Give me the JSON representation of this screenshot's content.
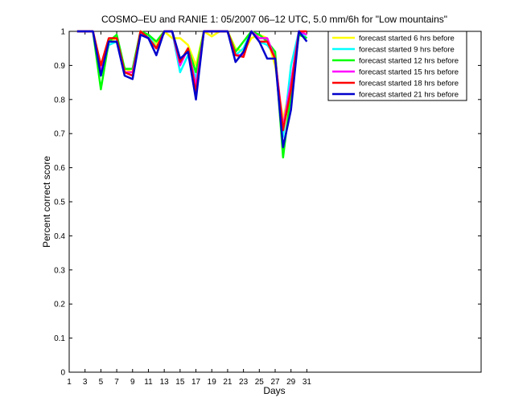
{
  "chart_data": {
    "type": "line",
    "title": "COSMO–EU and RANIE 1: 05/2007 06–12 UTC, 5.0 mm/6h for \"Low mountains\"",
    "xlabel": "Days",
    "ylabel": "Percent correct score",
    "xlim": [
      1,
      53
    ],
    "ylim": [
      0,
      1
    ],
    "x_ticks": [
      "1",
      "3",
      "5",
      "7",
      "9",
      "11",
      "13",
      "15",
      "17",
      "19",
      "21",
      "23",
      "25",
      "27",
      "29",
      "31"
    ],
    "y_ticks": [
      "0",
      "0.1",
      "0.2",
      "0.3",
      "0.4",
      "0.5",
      "0.6",
      "0.7",
      "0.8",
      "0.9",
      "1"
    ],
    "grid": false,
    "legend_position": "top-right",
    "x": [
      1,
      2,
      3,
      4,
      5,
      6,
      7,
      8,
      9,
      10,
      11,
      12,
      13,
      14,
      15,
      16,
      17,
      18,
      19,
      20,
      21,
      22,
      23,
      24,
      25,
      26,
      27,
      28,
      29,
      30,
      31
    ],
    "series": [
      {
        "name": "forecast started 6 hrs before",
        "color": "#ffff00",
        "values": [
          null,
          1,
          1,
          1,
          0.9,
          0.97,
          0.98,
          0.89,
          0.88,
          1,
          0.99,
          0.96,
          1,
          0.98,
          0.98,
          0.96,
          0.9,
          1,
          0.985,
          1,
          1,
          0.95,
          0.94,
          0.98,
          0.99,
          0.98,
          0.9,
          0.74,
          0.85,
          1,
          0.99
        ]
      },
      {
        "name": "forecast started 9 hrs before",
        "color": "#00ffff",
        "values": [
          null,
          1,
          1,
          1,
          0.87,
          0.96,
          0.97,
          0.88,
          0.87,
          0.99,
          0.99,
          0.95,
          1,
          1,
          0.88,
          0.93,
          0.86,
          1,
          1,
          1,
          1,
          0.93,
          0.95,
          1,
          0.97,
          0.96,
          0.93,
          0.69,
          0.9,
          1,
          0.98
        ]
      },
      {
        "name": "forecast started 12 hrs before",
        "color": "#00ff00",
        "values": [
          null,
          1,
          1,
          1,
          0.83,
          0.97,
          0.99,
          0.89,
          0.89,
          1,
          0.99,
          0.97,
          1,
          1,
          0.91,
          0.95,
          0.88,
          1,
          1,
          1,
          1,
          0.94,
          0.97,
          1,
          0.99,
          0.97,
          0.94,
          0.63,
          0.82,
          0.99,
          0.98
        ]
      },
      {
        "name": "forecast started 15 hrs before",
        "color": "#ff00ff",
        "values": [
          null,
          1,
          1,
          1,
          0.88,
          0.97,
          0.97,
          0.88,
          0.88,
          0.99,
          0.98,
          0.95,
          1,
          1,
          0.9,
          0.95,
          0.84,
          1,
          1,
          1,
          1,
          0.93,
          0.93,
          1,
          0.98,
          0.98,
          0.92,
          0.72,
          0.85,
          1,
          0.99
        ]
      },
      {
        "name": "forecast started 18 hrs before",
        "color": "#ff0000",
        "values": [
          null,
          1,
          1,
          1,
          0.9,
          0.98,
          0.98,
          0.88,
          0.87,
          1,
          0.98,
          0.95,
          1,
          1,
          0.91,
          0.95,
          0.82,
          1,
          1,
          1,
          1,
          0.93,
          0.925,
          1,
          0.97,
          0.97,
          0.92,
          0.71,
          0.83,
          1,
          1
        ]
      },
      {
        "name": "forecast started 21 hrs before",
        "color": "#0000cc",
        "values": [
          null,
          1,
          1,
          1,
          0.87,
          0.97,
          0.97,
          0.87,
          0.86,
          0.99,
          0.98,
          0.93,
          1,
          1,
          0.92,
          0.94,
          0.8,
          1,
          1,
          1,
          1,
          0.91,
          0.94,
          1,
          0.97,
          0.92,
          0.92,
          0.66,
          0.77,
          1,
          0.97
        ]
      }
    ]
  }
}
